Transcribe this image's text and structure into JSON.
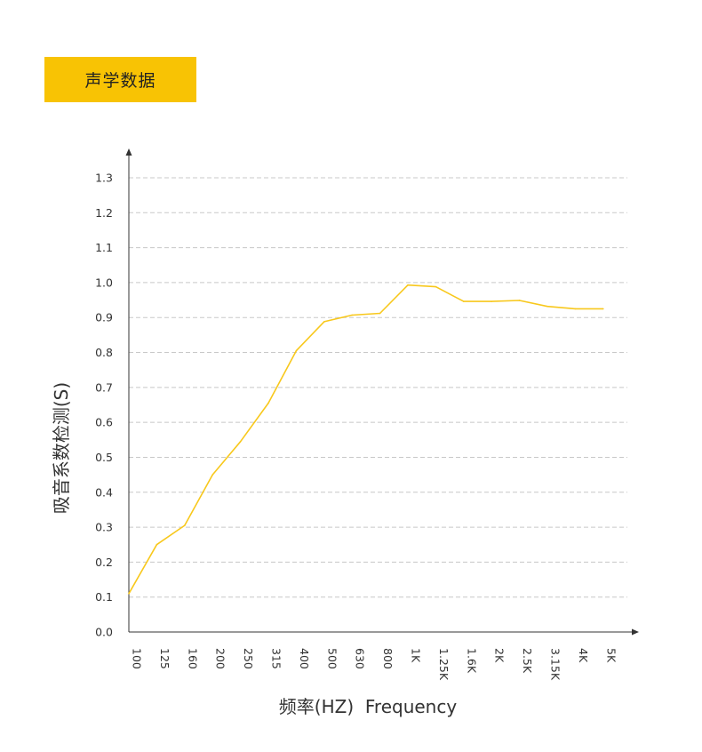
{
  "header": {
    "title": "声学数据"
  },
  "chart_data": {
    "type": "line",
    "title": "",
    "xlabel": "频率(HZ)  Frequency",
    "ylabel": "吸音系数检测(S)",
    "categories": [
      "100",
      "125",
      "160",
      "200",
      "250",
      "315",
      "400",
      "500",
      "630",
      "800",
      "1K",
      "1.25K",
      "1.6K",
      "2K",
      "2.5K",
      "3.15K",
      "4K",
      "5K"
    ],
    "series": [
      {
        "values": [
          0.11,
          0.25,
          0.305,
          0.45,
          0.545,
          0.655,
          0.805,
          0.888,
          0.907,
          0.912,
          0.993,
          0.988,
          0.946,
          0.946,
          0.949,
          0.932,
          0.925,
          0.925
        ]
      }
    ],
    "ylim": [
      0.0,
      1.3
    ],
    "yticks": [
      "0.0",
      "0.1",
      "0.2",
      "0.3",
      "0.4",
      "0.5",
      "0.6",
      "0.7",
      "0.8",
      "0.9",
      "1.0",
      "1.1",
      "1.2",
      "1.3"
    ],
    "grid": true,
    "colors": {
      "line": "#f8c81c",
      "grid": "#c8c8c8",
      "axis": "#333333",
      "badge": "#f8c304"
    }
  }
}
